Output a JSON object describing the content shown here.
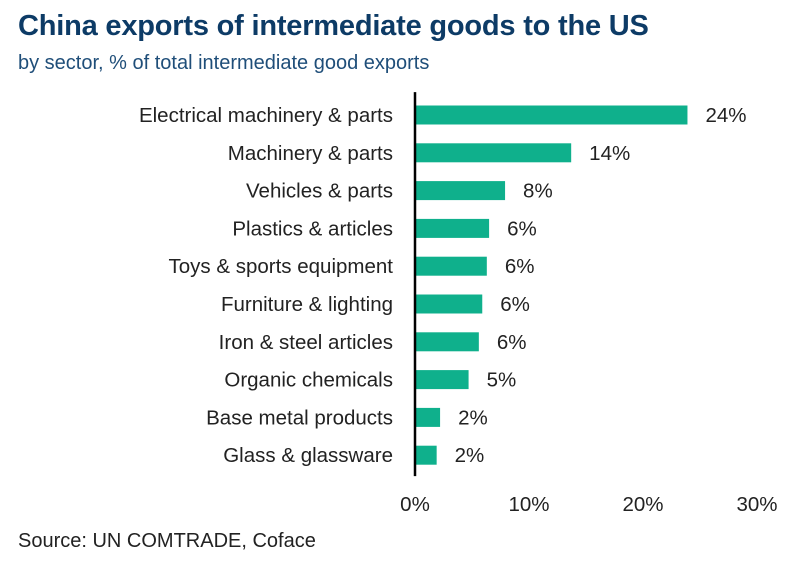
{
  "title": "China exports of intermediate goods to the US",
  "subtitle": "by sector, % of total intermediate good exports",
  "source": "Source: UN COMTRADE, Coface",
  "colors": {
    "bar": "#0fb08c",
    "axis": "#000000",
    "title": "#0d3b66",
    "subtitle": "#1f4e79"
  },
  "chart_data": {
    "type": "bar",
    "orientation": "horizontal",
    "categories": [
      "Electrical machinery & parts",
      "Machinery & parts",
      "Vehicles & parts",
      "Plastics & articles",
      "Toys & sports equipment",
      "Furniture & lighting",
      "Iron & steel articles",
      "Organic chemicals",
      "Base metal products",
      "Glass & glassware"
    ],
    "values": [
      23.9,
      13.7,
      7.9,
      6.5,
      6.3,
      5.9,
      5.6,
      4.7,
      2.2,
      1.9
    ],
    "value_labels": [
      "24%",
      "14%",
      "8%",
      "6%",
      "6%",
      "6%",
      "6%",
      "5%",
      "2%",
      "2%"
    ],
    "xlim": [
      0,
      30
    ],
    "xticks": [
      0,
      10,
      20,
      30
    ],
    "xtick_labels": [
      "0%",
      "10%",
      "20%",
      "30%"
    ],
    "grid": false,
    "legend": "none"
  }
}
